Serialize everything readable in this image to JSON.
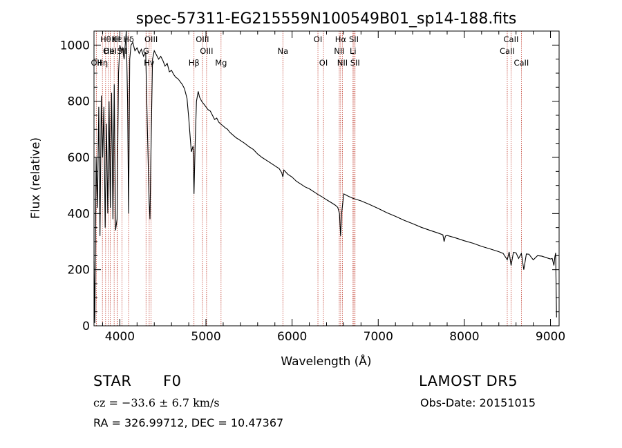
{
  "title": "spec-57311-EG215559N100549B01_sp14-188.fits",
  "chart_data": {
    "type": "line",
    "title": "spec-57311-EG215559N100549B01_sp14-188.fits",
    "xlabel": "Wavelength (Å)",
    "ylabel": "Flux (relative)",
    "xlim": [
      3700,
      9100
    ],
    "ylim": [
      0,
      1050
    ],
    "x_ticks": [
      "4000",
      "5000",
      "6000",
      "7000",
      "8000",
      "9000"
    ],
    "y_ticks": [
      "0",
      "200",
      "400",
      "600",
      "800",
      "1000"
    ],
    "grid": false,
    "series": [
      {
        "x": [
          3700,
          3710,
          3725,
          3740,
          3755,
          3770,
          3785,
          3800,
          3815,
          3830,
          3845,
          3860,
          3875,
          3889,
          3905,
          3920,
          3935,
          3950,
          3968,
          3985,
          4000,
          4015,
          4030,
          4050,
          4075,
          4090,
          4102,
          4115,
          4130,
          4150,
          4175,
          4200,
          4225,
          4250,
          4275,
          4300,
          4320,
          4340,
          4350,
          4360,
          4380,
          4400,
          4425,
          4450,
          4475,
          4500,
          4525,
          4550,
          4575,
          4600,
          4625,
          4650,
          4675,
          4700,
          4725,
          4750,
          4780,
          4800,
          4830,
          4850,
          4861,
          4875,
          4890,
          4910,
          4925,
          4950,
          4975,
          5000,
          5025,
          5050,
          5075,
          5100,
          5125,
          5150,
          5175,
          5200,
          5225,
          5250,
          5275,
          5300,
          5350,
          5400,
          5450,
          5500,
          5550,
          5600,
          5650,
          5700,
          5750,
          5800,
          5850,
          5880,
          5893,
          5905,
          5950,
          6000,
          6050,
          6100,
          6150,
          6200,
          6250,
          6300,
          6350,
          6400,
          6450,
          6500,
          6530,
          6550,
          6563,
          6575,
          6600,
          6650,
          6700,
          6750,
          6800,
          6900,
          7000,
          7100,
          7200,
          7300,
          7400,
          7500,
          7600,
          7700,
          7750,
          7765,
          7780,
          7800,
          7900,
          8000,
          8100,
          8200,
          8300,
          8400,
          8450,
          8498,
          8520,
          8542,
          8570,
          8600,
          8630,
          8662,
          8690,
          8720,
          8750,
          8800,
          8850,
          8900,
          8950,
          9000,
          9020,
          9040,
          9050,
          9060,
          9070
        ],
        "y": [
          230,
          10,
          600,
          420,
          780,
          320,
          820,
          600,
          780,
          350,
          720,
          400,
          800,
          420,
          830,
          380,
          860,
          340,
          380,
          900,
          1000,
          980,
          990,
          950,
          1060,
          800,
          400,
          950,
          1000,
          1010,
          980,
          990,
          970,
          985,
          960,
          975,
          700,
          440,
          380,
          600,
          950,
          980,
          965,
          950,
          960,
          945,
          925,
          935,
          905,
          910,
          895,
          885,
          880,
          870,
          860,
          845,
          810,
          740,
          620,
          640,
          470,
          650,
          800,
          835,
          815,
          800,
          790,
          780,
          770,
          765,
          750,
          735,
          740,
          725,
          718,
          712,
          705,
          700,
          690,
          683,
          670,
          660,
          650,
          638,
          628,
          612,
          600,
          590,
          580,
          570,
          560,
          545,
          530,
          555,
          540,
          530,
          515,
          505,
          495,
          488,
          478,
          468,
          459,
          449,
          440,
          430,
          422,
          400,
          320,
          400,
          470,
          462,
          455,
          450,
          445,
          432,
          418,
          403,
          390,
          376,
          364,
          351,
          340,
          330,
          324,
          300,
          320,
          322,
          313,
          303,
          294,
          283,
          274,
          264,
          258,
          235,
          263,
          215,
          262,
          260,
          240,
          258,
          200,
          256,
          255,
          235,
          250,
          248,
          243,
          238,
          240,
          215,
          245,
          260,
          30
        ]
      }
    ],
    "lines": [
      {
        "x": 3727,
        "label": "OII",
        "row": 2
      },
      {
        "x": 3798,
        "label": "Hη",
        "row": 2
      },
      {
        "x": 3835,
        "label": "Hθ",
        "row": 0
      },
      {
        "x": 3869,
        "label": "OII",
        "row": 1
      },
      {
        "x": 3889,
        "label": "HeI",
        "row": 1
      },
      {
        "x": 3934,
        "label": "K",
        "row": 0
      },
      {
        "x": 3968,
        "label": "H",
        "row": 0
      },
      {
        "x": 3970,
        "label": "Hε",
        "row": 0
      },
      {
        "x": 4026,
        "label": "SII",
        "row": 1
      },
      {
        "x": 4102,
        "label": "Hδ",
        "row": 0
      },
      {
        "x": 4304,
        "label": "G",
        "row": 1
      },
      {
        "x": 4341,
        "label": "Hγ",
        "row": 2
      },
      {
        "x": 4363,
        "label": "OIII",
        "row": 0
      },
      {
        "x": 4861,
        "label": "Hβ",
        "row": 2
      },
      {
        "x": 4959,
        "label": "OIII",
        "row": 0
      },
      {
        "x": 5007,
        "label": "OIII",
        "row": 1
      },
      {
        "x": 5175,
        "label": "Mg",
        "row": 2
      },
      {
        "x": 5893,
        "label": "Na",
        "row": 1
      },
      {
        "x": 6300,
        "label": "OI",
        "row": 0
      },
      {
        "x": 6364,
        "label": "OI",
        "row": 2
      },
      {
        "x": 6548,
        "label": "NII",
        "row": 1
      },
      {
        "x": 6563,
        "label": "Hα",
        "row": 0
      },
      {
        "x": 6584,
        "label": "NII",
        "row": 2
      },
      {
        "x": 6707,
        "label": "Li",
        "row": 1
      },
      {
        "x": 6717,
        "label": "SII",
        "row": 0
      },
      {
        "x": 6731,
        "label": "SII",
        "row": 2
      },
      {
        "x": 8498,
        "label": "CaII",
        "row": 1
      },
      {
        "x": 8542,
        "label": "CaII",
        "row": 0
      },
      {
        "x": 8662,
        "label": "CaII",
        "row": 2
      }
    ],
    "colors": {
      "spectrum": "#000000",
      "line_markers": "#c0392b"
    }
  },
  "info": {
    "class_label": "STAR",
    "subclass": "F0",
    "survey": "LAMOST DR5",
    "velocity": "cz = −33.6 ± 6.7 km/s",
    "obs_date": "Obs-Date: 20151015",
    "coords": "RA = 326.99712, DEC =  10.47367"
  }
}
